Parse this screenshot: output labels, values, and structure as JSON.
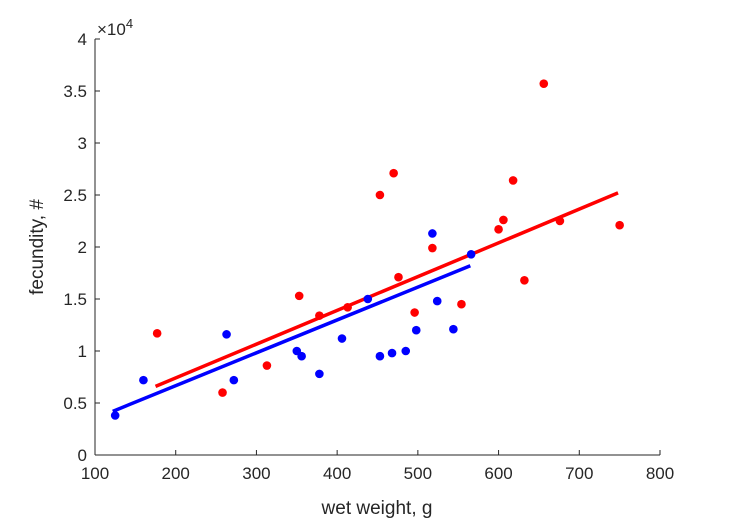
{
  "chart_data": {
    "type": "scatter",
    "xlabel": "wet weight, g",
    "ylabel": "fecundity, #",
    "xlim": [
      100,
      800
    ],
    "ylim": [
      0,
      4
    ],
    "x_ticks": [
      "100",
      "200",
      "300",
      "400",
      "500",
      "600",
      "700",
      "800"
    ],
    "y_ticks": [
      "0",
      "0.5",
      "1",
      "1.5",
      "2",
      "2.5",
      "3",
      "3.5",
      "4"
    ],
    "y_multiplier": {
      "base": "×10",
      "exponent": "4"
    },
    "grid": false,
    "series": [
      {
        "color": "#0000ff",
        "points": [
          [
            125,
            0.38
          ],
          [
            160,
            0.72
          ],
          [
            263,
            1.16
          ],
          [
            272,
            0.72
          ],
          [
            350,
            1.0
          ],
          [
            356,
            0.95
          ],
          [
            378,
            0.78
          ],
          [
            406,
            1.12
          ],
          [
            438,
            1.5
          ],
          [
            453,
            0.95
          ],
          [
            468,
            0.98
          ],
          [
            485,
            1.0
          ],
          [
            498,
            1.2
          ],
          [
            518,
            2.13
          ],
          [
            524,
            1.48
          ],
          [
            544,
            1.21
          ],
          [
            566,
            1.93
          ]
        ],
        "fit_line": [
          [
            122,
            0.42
          ],
          [
            565,
            1.82
          ]
        ]
      },
      {
        "color": "#ff0000",
        "points": [
          [
            177,
            1.17
          ],
          [
            258,
            0.6
          ],
          [
            313,
            0.86
          ],
          [
            353,
            1.53
          ],
          [
            378,
            1.34
          ],
          [
            413,
            1.42
          ],
          [
            453,
            2.5
          ],
          [
            470,
            2.71
          ],
          [
            476,
            1.71
          ],
          [
            496,
            1.37
          ],
          [
            518,
            1.99
          ],
          [
            554,
            1.45
          ],
          [
            600,
            2.17
          ],
          [
            606,
            2.26
          ],
          [
            618,
            2.64
          ],
          [
            632,
            1.68
          ],
          [
            656,
            3.57
          ],
          [
            676,
            2.25
          ],
          [
            750,
            2.21
          ]
        ],
        "fit_line": [
          [
            175,
            0.66
          ],
          [
            748,
            2.52
          ]
        ]
      }
    ]
  }
}
